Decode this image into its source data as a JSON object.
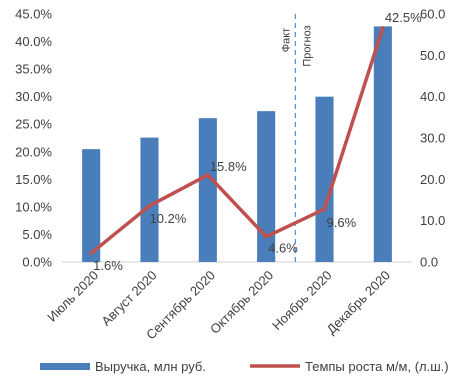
{
  "chart_data": {
    "type": "bar",
    "categories": [
      "Июль 2020",
      "Август 2020",
      "Сентябрь 2020",
      "Октябрь 2020",
      "Ноябрь 2020",
      "Декабрь 2020"
    ],
    "series": [
      {
        "name": "Выручка, млн руб.",
        "type": "bar",
        "axis": "right",
        "values": [
          27.3,
          30.1,
          34.8,
          36.5,
          40.0,
          57.0
        ],
        "color": "#4a7ebb"
      },
      {
        "name": "Темпы роста м/м, (л.ш.)",
        "type": "line",
        "axis": "left",
        "values": [
          0.016,
          0.102,
          0.158,
          0.046,
          0.096,
          0.425
        ],
        "data_labels": [
          "1.6%",
          "10.2%",
          "15.8%",
          "4.6%",
          "9.6%",
          "42.5%"
        ],
        "color": "#c0504d"
      }
    ],
    "y_left": {
      "ylim": [
        0,
        0.45
      ],
      "ticks": [
        0,
        0.05,
        0.1,
        0.15,
        0.2,
        0.25,
        0.3,
        0.35,
        0.4,
        0.45
      ],
      "tick_labels": [
        "0.0%",
        "5.0%",
        "10.0%",
        "15.0%",
        "20.0%",
        "25.0%",
        "30.0%",
        "35.0%",
        "40.0%",
        "45.0%"
      ]
    },
    "y_right": {
      "ylim": [
        0,
        60
      ],
      "ticks": [
        0,
        10,
        20,
        30,
        40,
        50,
        60
      ],
      "tick_labels": [
        "0.0",
        "10.0",
        "20.0",
        "30.0",
        "40.0",
        "50.0",
        "60.0"
      ]
    },
    "divider": {
      "between": [
        "Октябрь 2020",
        "Ноябрь 2020"
      ],
      "label_left": "Факт",
      "label_right": "Прогноз",
      "style": "dashed",
      "color": "#4f8ec9"
    },
    "grid": false,
    "legend": "bottom"
  }
}
